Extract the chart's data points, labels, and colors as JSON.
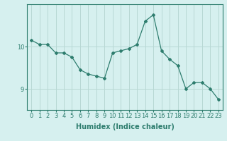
{
  "x": [
    0,
    1,
    2,
    3,
    4,
    5,
    6,
    7,
    8,
    9,
    10,
    11,
    12,
    13,
    14,
    15,
    16,
    17,
    18,
    19,
    20,
    21,
    22,
    23
  ],
  "y": [
    10.15,
    10.05,
    10.05,
    9.85,
    9.85,
    9.75,
    9.45,
    9.35,
    9.3,
    9.25,
    9.85,
    9.9,
    9.95,
    10.05,
    10.6,
    10.75,
    9.9,
    9.7,
    9.55,
    9.0,
    9.15,
    9.15,
    9.0,
    8.75
  ],
  "line_color": "#2e7d6e",
  "marker": "D",
  "marker_size": 2,
  "bg_color": "#d6f0ef",
  "grid_color": "#b8d8d4",
  "xlabel": "Humidex (Indice chaleur)",
  "yticks": [
    9,
    10
  ],
  "ylim": [
    8.5,
    11.0
  ],
  "xlim": [
    -0.5,
    23.5
  ],
  "xtick_labels": [
    "0",
    "1",
    "2",
    "3",
    "4",
    "5",
    "6",
    "7",
    "8",
    "9",
    "10",
    "11",
    "12",
    "13",
    "14",
    "15",
    "16",
    "17",
    "18",
    "19",
    "20",
    "21",
    "22",
    "23"
  ],
  "label_fontsize": 7,
  "tick_fontsize": 6
}
